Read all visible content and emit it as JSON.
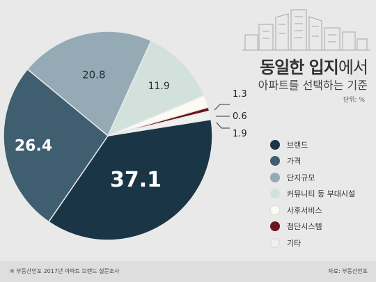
{
  "title": {
    "bold": "동일한 입지",
    "rest": "에서",
    "subtitle": "아파트를 선택하는 기준"
  },
  "unit_label": "단위: %",
  "chart_data": {
    "type": "pie",
    "categories": [
      "브랜드",
      "가격",
      "단지규모",
      "커뮤니티 등 부대시설",
      "사후서비스",
      "첨단시스템",
      "기타"
    ],
    "values": [
      37.1,
      26.4,
      20.8,
      11.9,
      1.9,
      0.6,
      1.3
    ],
    "value_labels": [
      "37.1",
      "26.4",
      "20.8",
      "11.9",
      "1.9",
      "0.6",
      "1.3"
    ],
    "colors": [
      "#1a3546",
      "#3f5e70",
      "#94abb6",
      "#d3e1dc",
      "#fbfbf4",
      "#6a1420",
      "#f0f0ee"
    ],
    "label_colors": [
      "#ffffff",
      "#ffffff",
      "#1f2f38",
      "#1f2f38",
      "#222222",
      "#222222",
      "#222222"
    ],
    "legend_placement": "right"
  },
  "footer": {
    "source_left": "※ 부동산인포 2017년 아파트 브랜드 설문조사",
    "source_right": "자료: 부동산인포"
  }
}
